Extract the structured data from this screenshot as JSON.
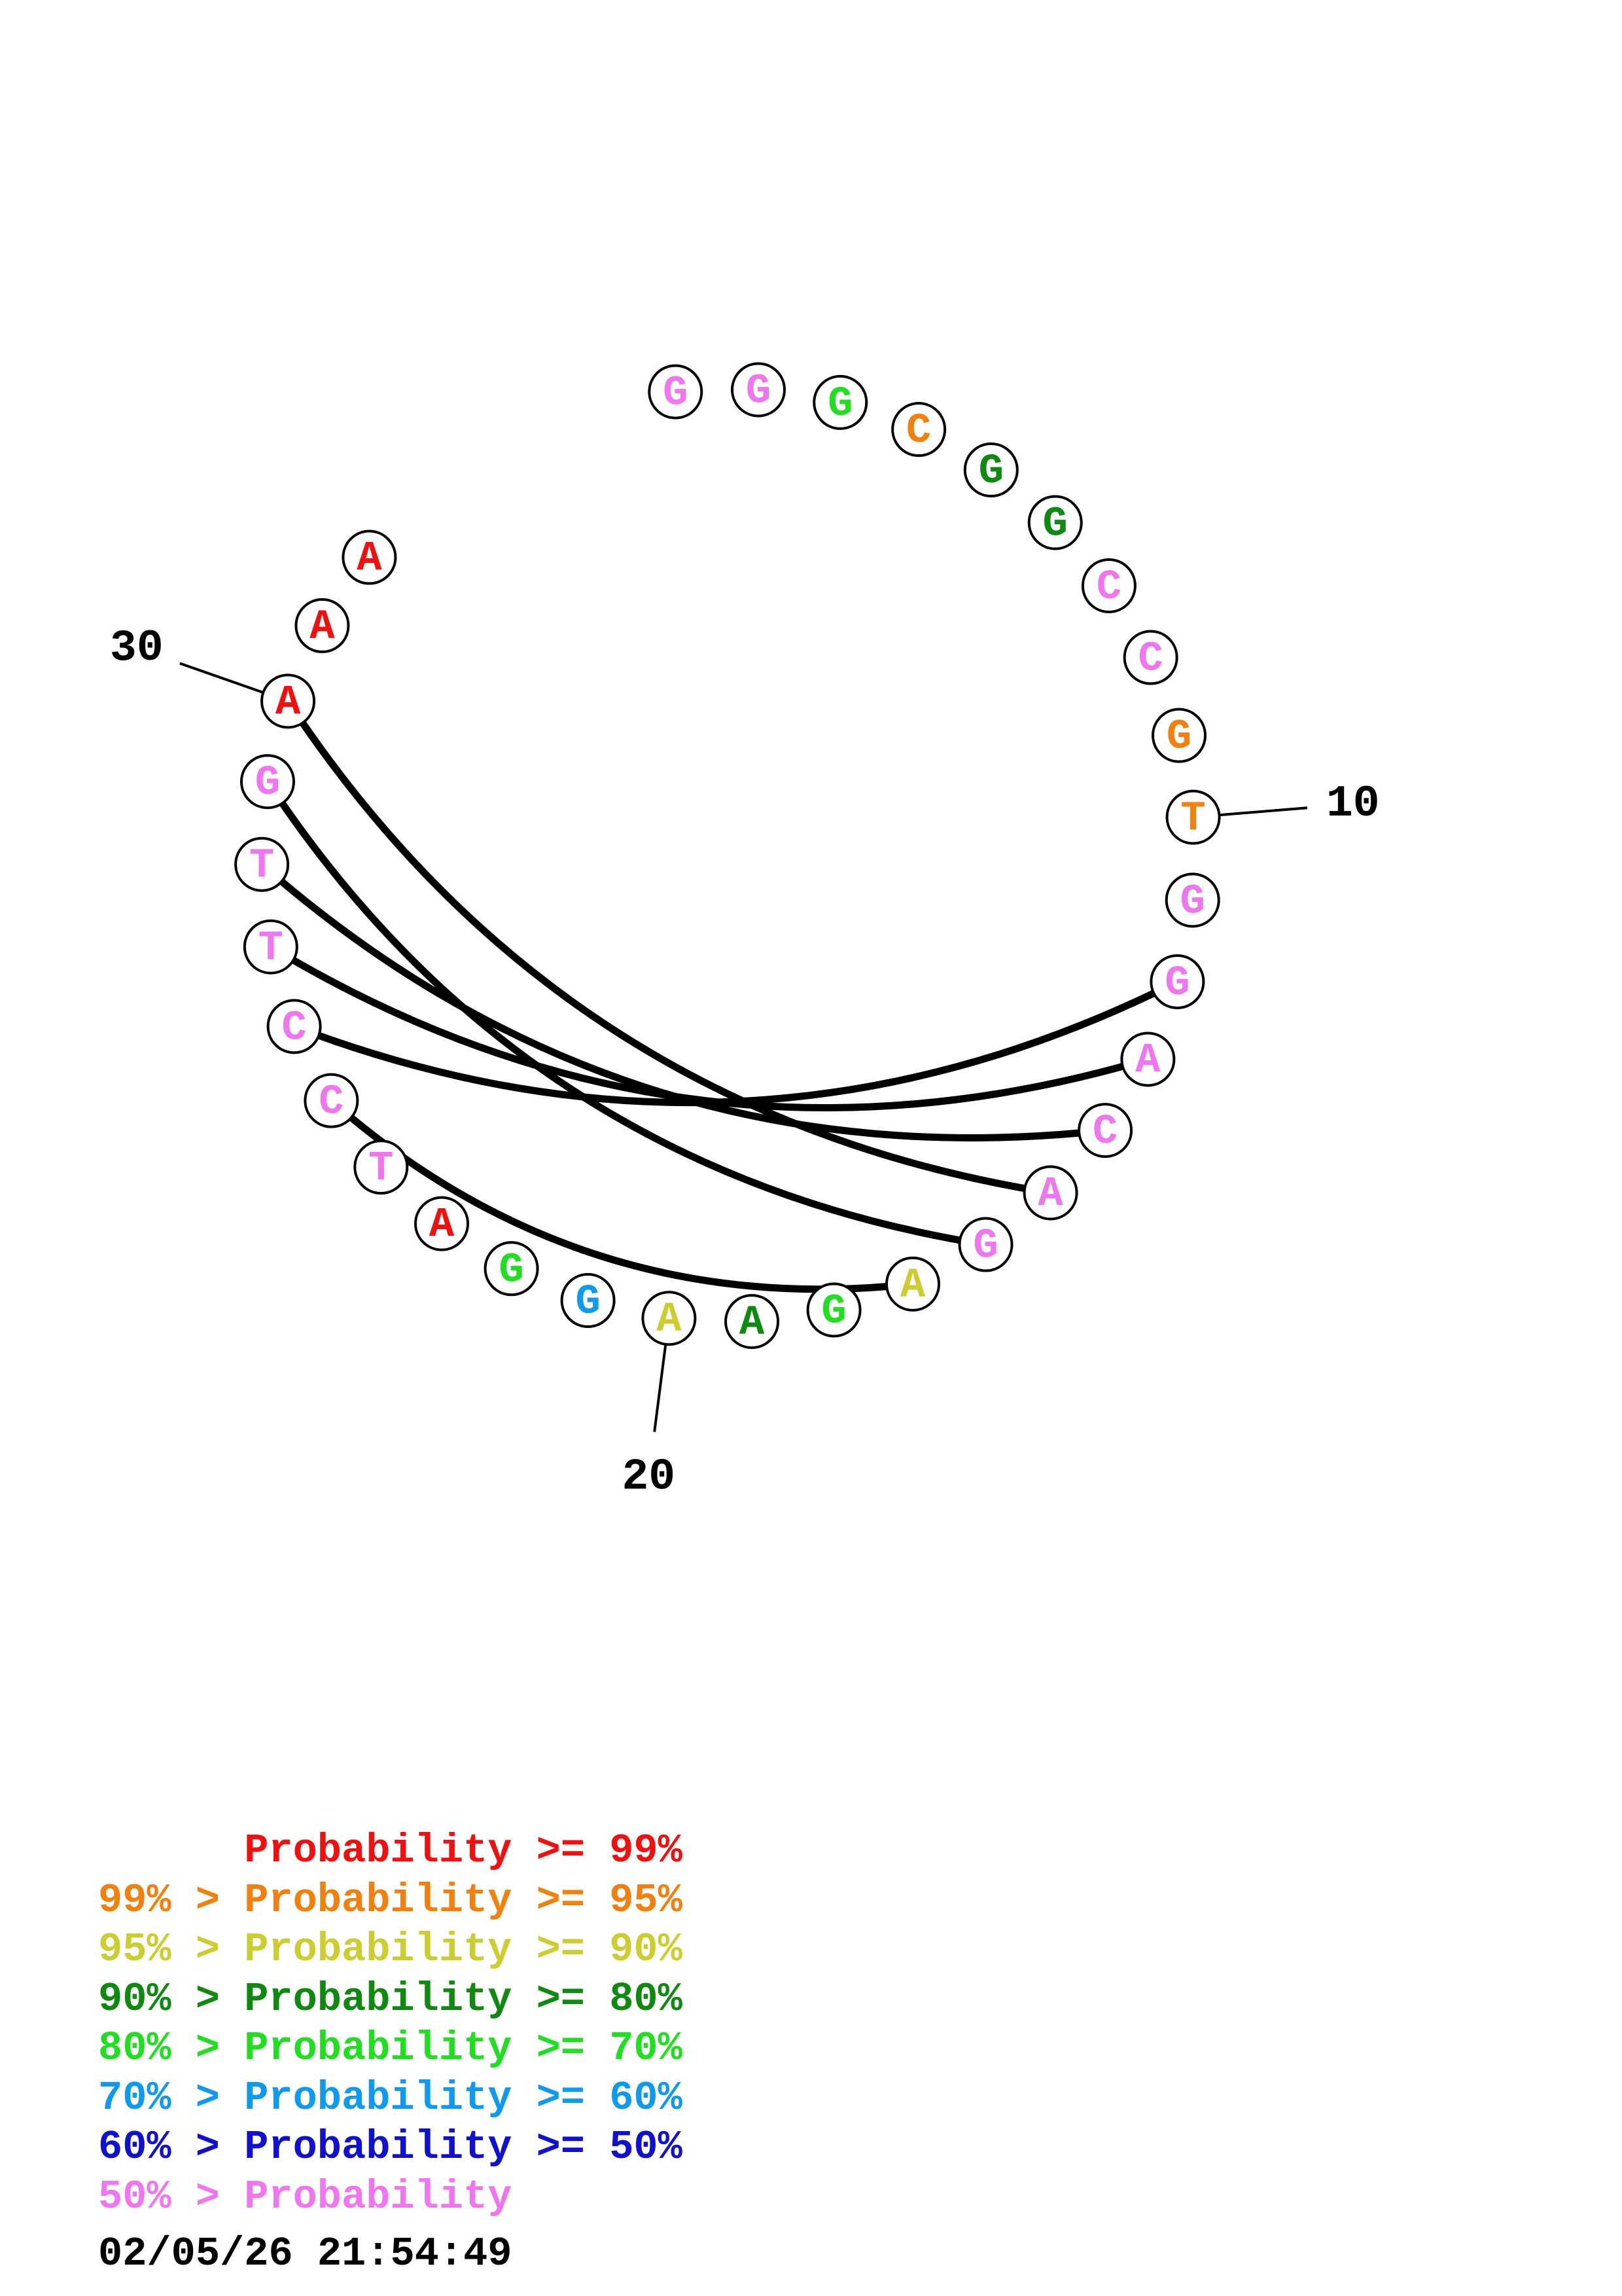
{
  "colors": {
    "p99": "#ee1111",
    "p95": "#f08010",
    "p90": "#cccc33",
    "p80": "#118811",
    "p70": "#22dd22",
    "p60": "#1199ee",
    "p50": "#1111cc",
    "plt50": "#ee77ee"
  },
  "nucleotides": [
    {
      "base": "G",
      "cls": "plt50"
    },
    {
      "base": "G",
      "cls": "plt50"
    },
    {
      "base": "G",
      "cls": "p70"
    },
    {
      "base": "C",
      "cls": "p95"
    },
    {
      "base": "G",
      "cls": "p80"
    },
    {
      "base": "G",
      "cls": "p80"
    },
    {
      "base": "C",
      "cls": "plt50"
    },
    {
      "base": "C",
      "cls": "plt50"
    },
    {
      "base": "G",
      "cls": "p95"
    },
    {
      "base": "T",
      "cls": "p95"
    },
    {
      "base": "G",
      "cls": "plt50"
    },
    {
      "base": "G",
      "cls": "plt50"
    },
    {
      "base": "A",
      "cls": "plt50"
    },
    {
      "base": "C",
      "cls": "plt50"
    },
    {
      "base": "A",
      "cls": "plt50"
    },
    {
      "base": "G",
      "cls": "plt50"
    },
    {
      "base": "A",
      "cls": "p90"
    },
    {
      "base": "G",
      "cls": "p70"
    },
    {
      "base": "A",
      "cls": "p80"
    },
    {
      "base": "A",
      "cls": "p90"
    },
    {
      "base": "G",
      "cls": "p60"
    },
    {
      "base": "G",
      "cls": "p70"
    },
    {
      "base": "A",
      "cls": "p99"
    },
    {
      "base": "T",
      "cls": "plt50"
    },
    {
      "base": "C",
      "cls": "plt50"
    },
    {
      "base": "C",
      "cls": "plt50"
    },
    {
      "base": "T",
      "cls": "plt50"
    },
    {
      "base": "T",
      "cls": "plt50"
    },
    {
      "base": "G",
      "cls": "plt50"
    },
    {
      "base": "A",
      "cls": "p99"
    },
    {
      "base": "A",
      "cls": "p99"
    },
    {
      "base": "A",
      "cls": "p99"
    }
  ],
  "pairs": [
    [
      11,
      25
    ],
    [
      12,
      26
    ],
    [
      13,
      27
    ],
    [
      14,
      29
    ],
    [
      15,
      28
    ],
    [
      16,
      24
    ]
  ],
  "position_labels": [
    {
      "index": 10,
      "text": "10"
    },
    {
      "index": 20,
      "text": "20"
    },
    {
      "index": 30,
      "text": "30"
    }
  ],
  "legend": [
    {
      "prefix": "",
      "op": "",
      "label": "Probability",
      "suffix": ">= 99%",
      "cls": "p99"
    },
    {
      "prefix": "99%",
      "op": ">",
      "label": "Probability",
      "suffix": ">= 95%",
      "cls": "p95"
    },
    {
      "prefix": "95%",
      "op": ">",
      "label": "Probability",
      "suffix": ">= 90%",
      "cls": "p90"
    },
    {
      "prefix": "90%",
      "op": ">",
      "label": "Probability",
      "suffix": ">= 80%",
      "cls": "p80"
    },
    {
      "prefix": "80%",
      "op": ">",
      "label": "Probability",
      "suffix": ">= 70%",
      "cls": "p70"
    },
    {
      "prefix": "70%",
      "op": ">",
      "label": "Probability",
      "suffix": ">= 60%",
      "cls": "p60"
    },
    {
      "prefix": "60%",
      "op": ">",
      "label": "Probability",
      "suffix": ">= 50%",
      "cls": "p50"
    },
    {
      "prefix": "50%",
      "op": ">",
      "label": "Probability",
      "suffix": "",
      "cls": "plt50"
    }
  ],
  "timestamp": "02/05/26 21:54:49"
}
